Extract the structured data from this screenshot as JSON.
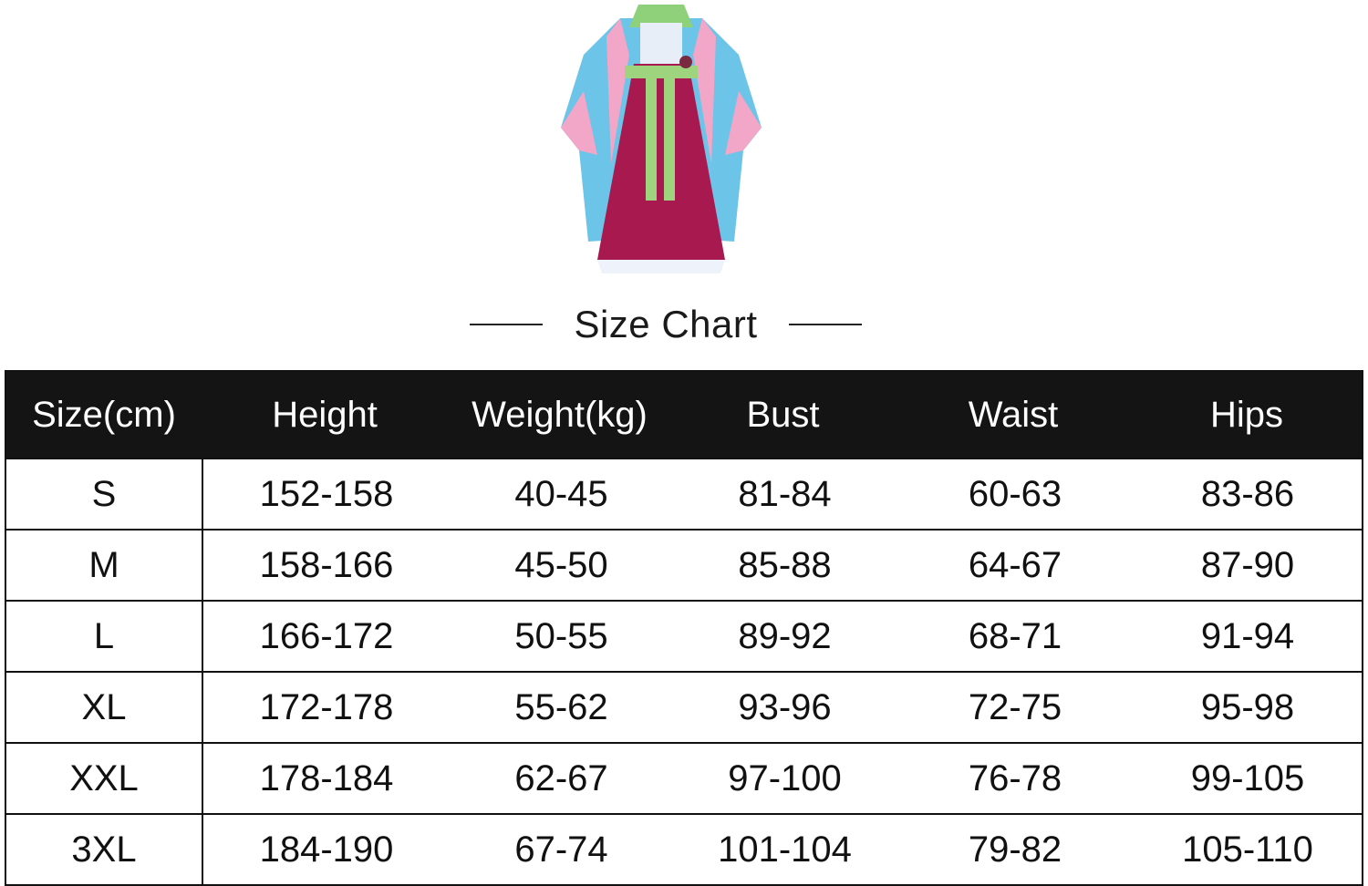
{
  "title": "Size Chart",
  "colors": {
    "header_bg": "#141414",
    "dress_skirt": "#a8194f",
    "dress_sleeve": "#6cc4e8",
    "dress_pink": "#f2a6c8",
    "dress_sash": "#9ed47e"
  },
  "table": {
    "headers": [
      "Size(cm)",
      "Height",
      "Weight(kg)",
      "Bust",
      "Waist",
      "Hips"
    ],
    "rows": [
      [
        "S",
        "152-158",
        "40-45",
        "81-84",
        "60-63",
        "83-86"
      ],
      [
        "M",
        "158-166",
        "45-50",
        "85-88",
        "64-67",
        "87-90"
      ],
      [
        "L",
        "166-172",
        "50-55",
        "89-92",
        "68-71",
        "91-94"
      ],
      [
        "XL",
        "172-178",
        "55-62",
        "93-96",
        "72-75",
        "95-98"
      ],
      [
        "XXL",
        "178-184",
        "62-67",
        "97-100",
        "76-78",
        "99-105"
      ],
      [
        "3XL",
        "184-190",
        "67-74",
        "101-104",
        "79-82",
        "105-110"
      ]
    ]
  }
}
